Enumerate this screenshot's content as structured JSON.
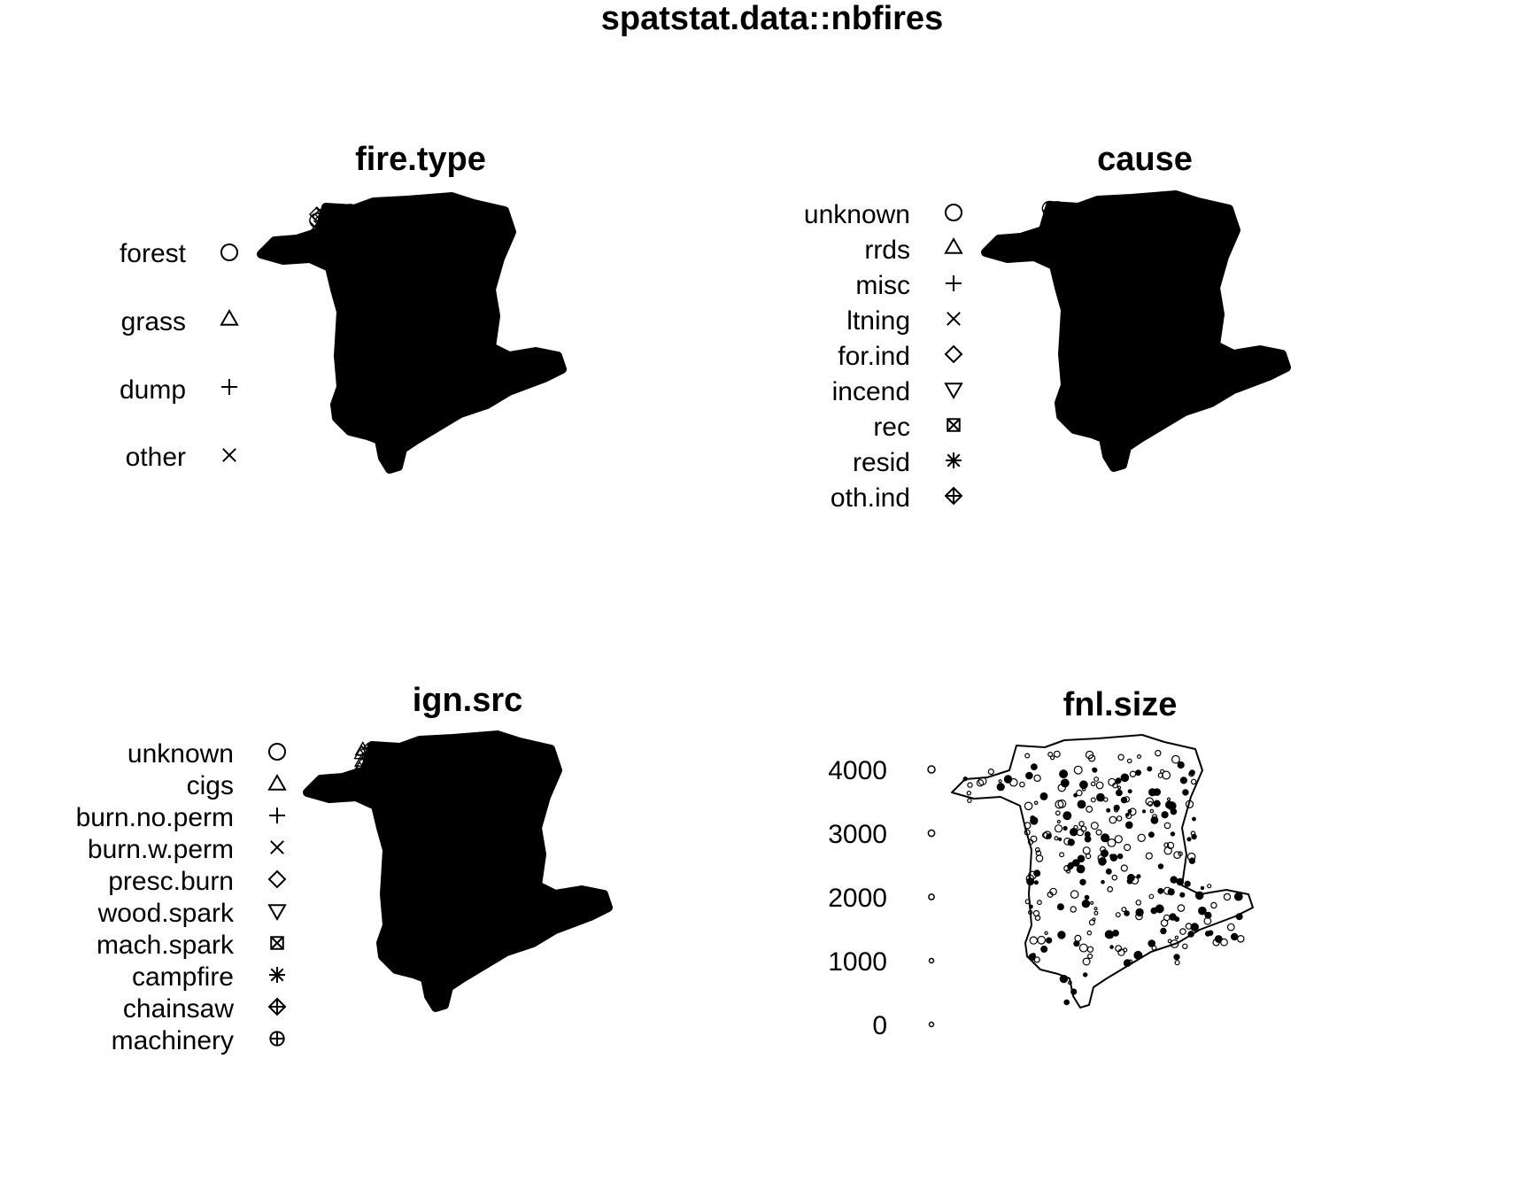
{
  "chart_data": {
    "type": "scatter",
    "title": "spatstat.data::nbfires",
    "panels": [
      {
        "title": "fire.type",
        "legend": [
          {
            "label": "forest",
            "symbol": "circle"
          },
          {
            "label": "grass",
            "symbol": "triangle-up"
          },
          {
            "label": "dump",
            "symbol": "plus"
          },
          {
            "label": "other",
            "symbol": "cross"
          }
        ]
      },
      {
        "title": "cause",
        "legend": [
          {
            "label": "unknown",
            "symbol": "circle"
          },
          {
            "label": "rrds",
            "symbol": "triangle-up"
          },
          {
            "label": "misc",
            "symbol": "plus"
          },
          {
            "label": "ltning",
            "symbol": "cross"
          },
          {
            "label": "for.ind",
            "symbol": "diamond"
          },
          {
            "label": "incend",
            "symbol": "triangle-down"
          },
          {
            "label": "rec",
            "symbol": "square-cross"
          },
          {
            "label": "resid",
            "symbol": "asterisk"
          },
          {
            "label": "oth.ind",
            "symbol": "diamond-plus"
          }
        ]
      },
      {
        "title": "ign.src",
        "legend": [
          {
            "label": "unknown",
            "symbol": "circle"
          },
          {
            "label": "cigs",
            "symbol": "triangle-up"
          },
          {
            "label": "burn.no.perm",
            "symbol": "plus"
          },
          {
            "label": "burn.w.perm",
            "symbol": "cross"
          },
          {
            "label": "presc.burn",
            "symbol": "diamond"
          },
          {
            "label": "wood.spark",
            "symbol": "triangle-down"
          },
          {
            "label": "mach.spark",
            "symbol": "square-cross"
          },
          {
            "label": "campfire",
            "symbol": "asterisk"
          },
          {
            "label": "chainsaw",
            "symbol": "diamond-plus"
          },
          {
            "label": "machinery",
            "symbol": "circle-plus"
          }
        ]
      },
      {
        "title": "fnl.size",
        "legend": [
          {
            "label": "4000",
            "value": 4000,
            "symbol": "circle"
          },
          {
            "label": "3000",
            "value": 3000,
            "symbol": "circle"
          },
          {
            "label": "2000",
            "value": 2000,
            "symbol": "circle"
          },
          {
            "label": "1000",
            "value": 1000,
            "symbol": "circle"
          },
          {
            "label": "0",
            "value": 0,
            "symbol": "circle"
          }
        ]
      }
    ],
    "colors": {
      "ink": "#000000",
      "background": "#ffffff"
    }
  }
}
